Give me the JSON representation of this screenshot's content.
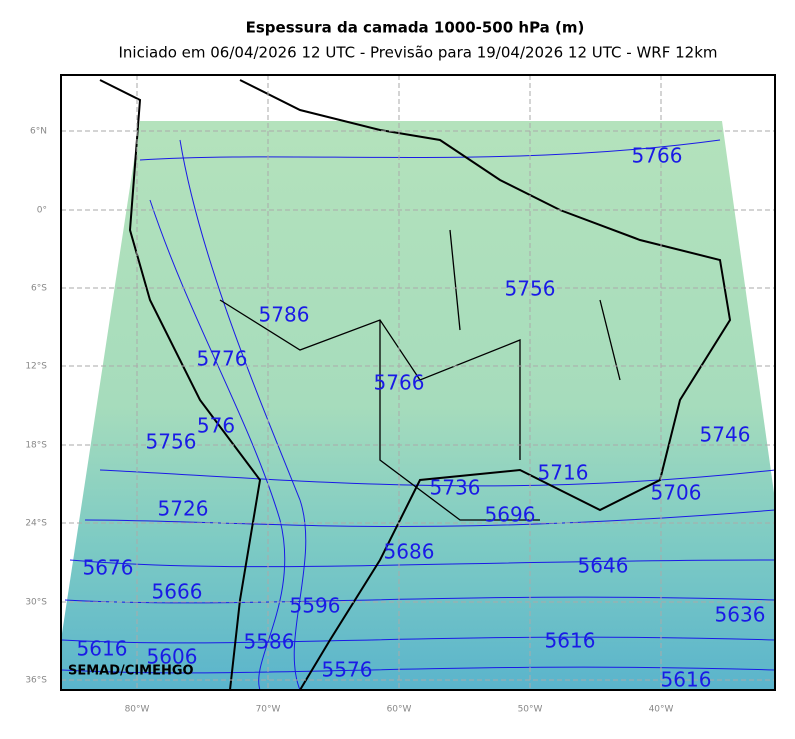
{
  "title": "Espessura da camada 1000-500 hPa (m)",
  "subtitle": "Iniciado em 06/04/2026 12 UTC - Previsão para 19/04/2026 12 UTC - WRF 12km",
  "lat_ticks": [
    "6°N",
    "0°",
    "6°S",
    "12°S",
    "18°S",
    "24°S",
    "30°S",
    "36°S"
  ],
  "lon_ticks": [
    "80°W",
    "70°W",
    "60°W",
    "50°W",
    "40°W"
  ],
  "contour_labels": [
    "5766",
    "5756",
    "5786",
    "5776",
    "5766",
    "5746",
    "5756",
    "576",
    "5716",
    "5736",
    "5706",
    "5726",
    "5696",
    "5686",
    "5676",
    "5646",
    "5666",
    "5596",
    "5636",
    "5616",
    "5616",
    "5606",
    "5586",
    "5576",
    "5616"
  ],
  "watermark": "SEMAD/CIMEHGO"
}
